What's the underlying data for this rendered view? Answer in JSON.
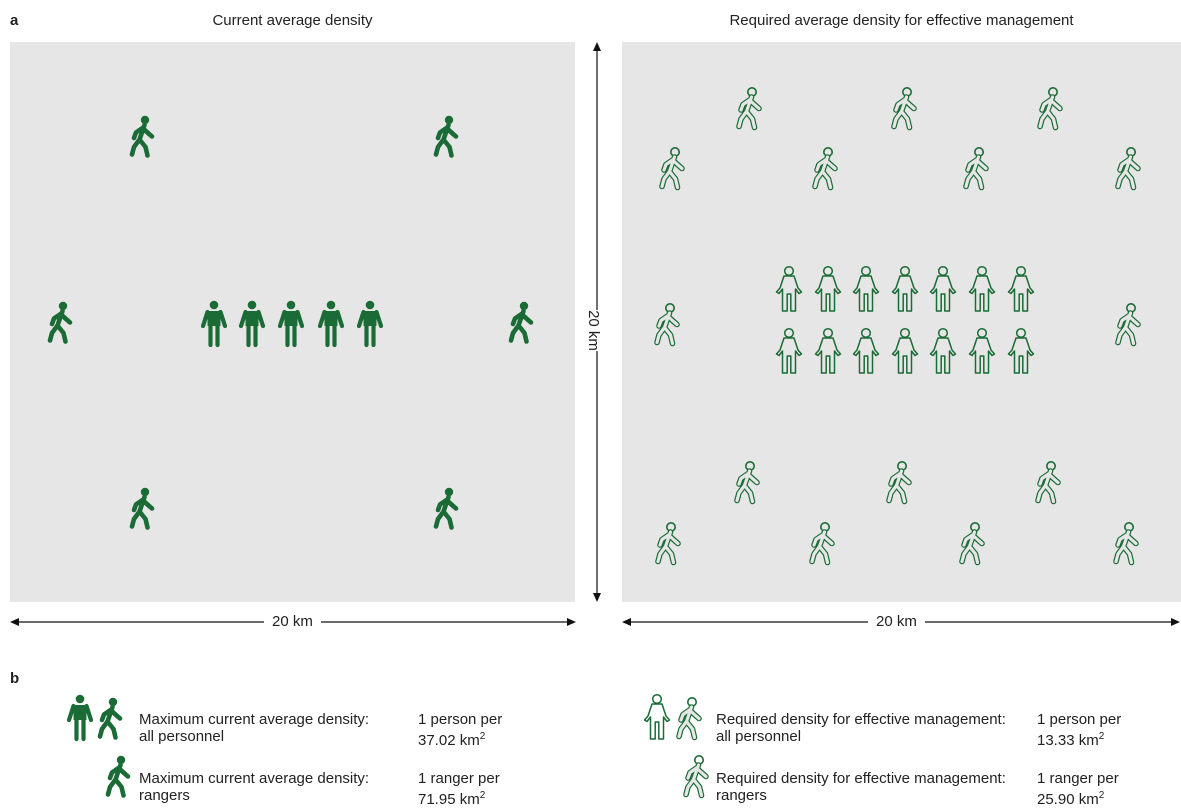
{
  "panel_a": {
    "label": "a",
    "left_title": "Current average density",
    "right_title": "Required average density for effective management",
    "left_width_label": "20 km",
    "right_width_label": "20 km",
    "height_label": "20 km"
  },
  "panel_b": {
    "label": "b",
    "legend": [
      {
        "title": "Maximum current average density:",
        "subtitle": "all personnel",
        "value_line1": "1 person per",
        "value_line2": "37.02 km",
        "sup": "2"
      },
      {
        "title": "Maximum current average density:",
        "subtitle": "rangers",
        "value_line1": "1 ranger per",
        "value_line2": "71.95 km",
        "sup": "2"
      },
      {
        "title": "Required density for effective management:",
        "subtitle": "all personnel",
        "value_line1": "1 person per",
        "value_line2": "13.33 km",
        "sup": "2"
      },
      {
        "title": "Required density for effective management:",
        "subtitle": "rangers",
        "value_line1": "1 ranger per",
        "value_line2": "25.90 km",
        "sup": "2"
      }
    ]
  },
  "colors": {
    "figure_green": "#1a6b35",
    "panel_gray": "#e6e6e6"
  },
  "icons": {
    "ranger": "walking-person-icon",
    "personnel": "standing-person-icon"
  }
}
